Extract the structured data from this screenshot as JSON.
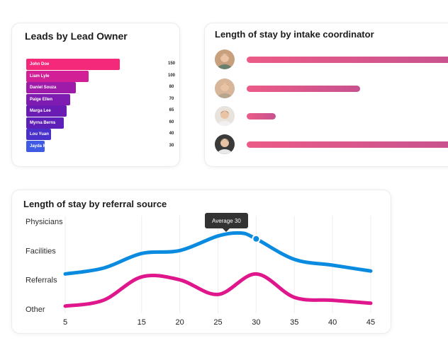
{
  "leads": {
    "title": "Leads by Lead Owner",
    "items": [
      {
        "name": "John Doe",
        "value": "150",
        "color": "#f5297a"
      },
      {
        "name": "Liam Lyle",
        "value": "100",
        "color": "#d31f95"
      },
      {
        "name": "Daniel Souza",
        "value": "80",
        "color": "#9d1ba8"
      },
      {
        "name": "Paige Ellen",
        "value": "70",
        "color": "#7e1bb0"
      },
      {
        "name": "Marga Lee",
        "value": "65",
        "color": "#6a1bb4"
      },
      {
        "name": "Myrna Berns",
        "value": "60",
        "color": "#5d1fb8"
      },
      {
        "name": "Lou Yuan",
        "value": "40",
        "color": "#4a30cb"
      },
      {
        "name": "Jayda Malik",
        "value": "30",
        "color": "#3f5be6"
      }
    ]
  },
  "stay": {
    "title": "Length of stay by intake coordinator",
    "rows": [
      {
        "avatar": "man-avatar-icon",
        "fraction": 1.0
      },
      {
        "avatar": "woman-avatar-icon",
        "fraction": 0.54
      },
      {
        "avatar": "woman-avatar-icon",
        "fraction": 0.14
      },
      {
        "avatar": "man-avatar-icon",
        "fraction": 1.0
      }
    ]
  },
  "tooltip": {
    "label": "Average 30"
  },
  "chart_data": [
    {
      "type": "bar",
      "title": "Leads by Lead Owner",
      "orientation": "horizontal",
      "categories": [
        "John Doe",
        "Liam Lyle",
        "Daniel Souza",
        "Paige Ellen",
        "Marga Lee",
        "Myrna Berns",
        "Lou Yuan",
        "Jayda Malik"
      ],
      "values": [
        150,
        100,
        80,
        70,
        65,
        60,
        40,
        30
      ]
    },
    {
      "type": "line",
      "title": "Length of stay by referral source",
      "categories_y": [
        "Physicians",
        "Facilities",
        "Referrals",
        "Other"
      ],
      "x_ticks": [
        5,
        15,
        20,
        25,
        30,
        35,
        40,
        45
      ],
      "xlim": [
        5,
        45
      ],
      "ylim": [
        0,
        3
      ],
      "grid": "vertical",
      "series": [
        {
          "color": "#0b8bdf",
          "points": [
            [
              5,
              1.2
            ],
            [
              10,
              1.4
            ],
            [
              15,
              1.9
            ],
            [
              20,
              2.0
            ],
            [
              25,
              2.5
            ],
            [
              28,
              2.6
            ],
            [
              30,
              2.4
            ],
            [
              35,
              1.7
            ],
            [
              40,
              1.5
            ],
            [
              45,
              1.3
            ]
          ]
        },
        {
          "color": "#e0168c",
          "points": [
            [
              5,
              0.1
            ],
            [
              10,
              0.3
            ],
            [
              15,
              1.1
            ],
            [
              20,
              1.0
            ],
            [
              25,
              0.5
            ],
            [
              30,
              1.2
            ],
            [
              35,
              0.4
            ],
            [
              40,
              0.3
            ],
            [
              45,
              0.2
            ]
          ]
        }
      ],
      "annotation": {
        "text": "Average 30",
        "x": 30
      }
    }
  ]
}
